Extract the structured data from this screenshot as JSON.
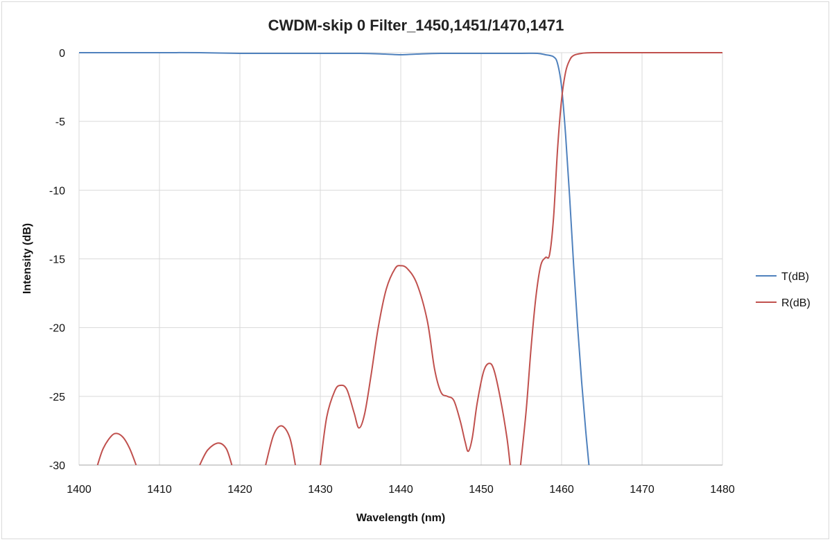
{
  "chart_data": {
    "type": "line",
    "title": "CWDM-skip 0 Filter_1450,1451/1470,1471",
    "xlabel": "Wavelength (nm)",
    "ylabel": "Intensity (dB)",
    "xlim": [
      1400,
      1480
    ],
    "ylim": [
      -30,
      0
    ],
    "xticks": [
      "1400",
      "1410",
      "1420",
      "1430",
      "1440",
      "1450",
      "1460",
      "1470",
      "1480"
    ],
    "yticks": [
      "0",
      "-5",
      "-10",
      "-15",
      "-20",
      "-25",
      "-30"
    ],
    "grid": true,
    "legend_position": "right",
    "series": [
      {
        "name": "T(dB)",
        "color": "#4f81bd",
        "points": [
          [
            1400,
            0
          ],
          [
            1405,
            0
          ],
          [
            1410,
            0
          ],
          [
            1415,
            0
          ],
          [
            1420,
            -0.05
          ],
          [
            1425,
            -0.05
          ],
          [
            1430,
            -0.05
          ],
          [
            1435,
            -0.05
          ],
          [
            1438,
            -0.1
          ],
          [
            1440,
            -0.15
          ],
          [
            1442,
            -0.1
          ],
          [
            1445,
            -0.05
          ],
          [
            1450,
            -0.05
          ],
          [
            1455,
            -0.05
          ],
          [
            1457,
            -0.05
          ],
          [
            1458,
            -0.15
          ],
          [
            1459,
            -0.3
          ],
          [
            1459.5,
            -0.8
          ],
          [
            1460,
            -2.5
          ],
          [
            1460.5,
            -6
          ],
          [
            1461,
            -10.5
          ],
          [
            1461.5,
            -15.5
          ],
          [
            1462,
            -20
          ],
          [
            1462.5,
            -24
          ],
          [
            1463,
            -27.5
          ],
          [
            1463.4,
            -30
          ]
        ]
      },
      {
        "name": "R(dB)",
        "color": "#c0504d",
        "segments": [
          [
            [
              1402.3,
              -30
            ],
            [
              1403,
              -28.8
            ],
            [
              1404,
              -27.9
            ],
            [
              1404.7,
              -27.7
            ],
            [
              1405.5,
              -28
            ],
            [
              1406.3,
              -28.8
            ],
            [
              1407.1,
              -30
            ]
          ],
          [
            [
              1415,
              -30
            ],
            [
              1416,
              -28.9
            ],
            [
              1417.3,
              -28.4
            ],
            [
              1418.3,
              -28.8
            ],
            [
              1419,
              -30
            ]
          ],
          [
            [
              1423.2,
              -30
            ],
            [
              1424.2,
              -27.8
            ],
            [
              1425.2,
              -27.15
            ],
            [
              1426.2,
              -28
            ],
            [
              1426.9,
              -30
            ]
          ],
          [
            [
              1430,
              -30
            ],
            [
              1430.8,
              -26.5
            ],
            [
              1431.8,
              -24.6
            ],
            [
              1432.5,
              -24.2
            ],
            [
              1433.3,
              -24.5
            ],
            [
              1434.2,
              -26.2
            ],
            [
              1434.8,
              -27.3
            ],
            [
              1435.5,
              -26.3
            ],
            [
              1436.3,
              -23.5
            ],
            [
              1437.2,
              -20
            ],
            [
              1438.2,
              -17.2
            ],
            [
              1439.3,
              -15.7
            ],
            [
              1440,
              -15.5
            ],
            [
              1440.8,
              -15.7
            ],
            [
              1442,
              -16.8
            ],
            [
              1443.3,
              -19.5
            ],
            [
              1444.2,
              -23
            ],
            [
              1445,
              -24.7
            ],
            [
              1445.8,
              -25
            ],
            [
              1446.6,
              -25.3
            ],
            [
              1447.4,
              -26.8
            ],
            [
              1448,
              -28.3
            ],
            [
              1448.4,
              -29
            ],
            [
              1448.9,
              -28
            ],
            [
              1449.5,
              -25.5
            ],
            [
              1450.3,
              -23.2
            ],
            [
              1451,
              -22.6
            ],
            [
              1451.6,
              -23.1
            ],
            [
              1452.4,
              -25.2
            ],
            [
              1453.2,
              -28
            ],
            [
              1453.6,
              -30
            ]
          ],
          [
            [
              1454.9,
              -30
            ],
            [
              1455.6,
              -26
            ],
            [
              1456.2,
              -21.5
            ],
            [
              1456.8,
              -17.8
            ],
            [
              1457.4,
              -15.5
            ],
            [
              1458,
              -14.9
            ],
            [
              1458.5,
              -14.7
            ],
            [
              1459,
              -12
            ],
            [
              1459.5,
              -7
            ],
            [
              1460,
              -3.4
            ],
            [
              1460.5,
              -1.4
            ],
            [
              1461,
              -0.55
            ],
            [
              1461.5,
              -0.2
            ],
            [
              1462.5,
              -0.05
            ],
            [
              1464,
              0
            ],
            [
              1470,
              0
            ],
            [
              1480,
              0
            ]
          ]
        ]
      }
    ]
  }
}
